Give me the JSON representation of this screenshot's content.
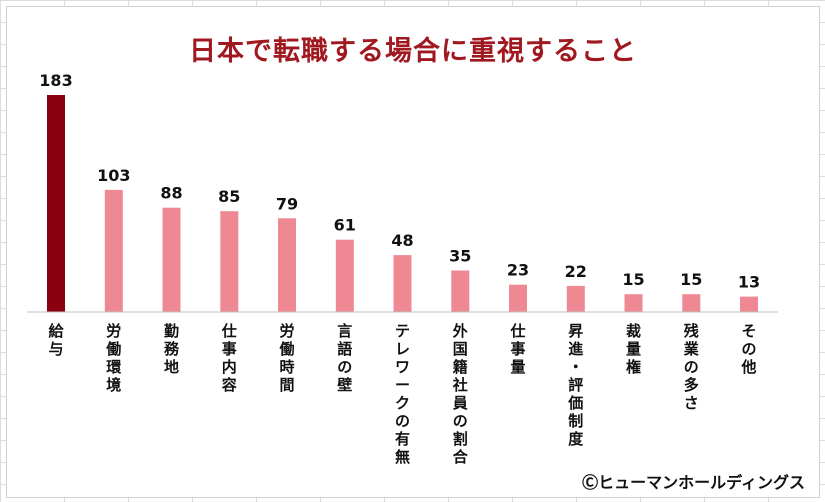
{
  "chart_data": {
    "type": "bar",
    "title": "日本で転職する場合に重視すること",
    "categories": [
      "給与",
      "労働環境",
      "勤務地",
      "仕事内容",
      "労働時間",
      "言語の壁",
      "テレワークの有無",
      "外国籍社員の割合",
      "仕事量",
      "昇進・評価制度",
      "裁量権",
      "残業の多さ",
      "その他"
    ],
    "values": [
      183,
      103,
      88,
      85,
      79,
      61,
      48,
      35,
      23,
      22,
      15,
      15,
      13
    ],
    "ylim": [
      0,
      183
    ],
    "grid": false,
    "legend": "none"
  },
  "copyright": "Ⓒヒューマンホールディングス",
  "colors": {
    "title": "#a01820",
    "highlight_bar": "#8b0010",
    "bar": "#ee8893",
    "axis": "#bfbfbf",
    "label": "#111111"
  }
}
